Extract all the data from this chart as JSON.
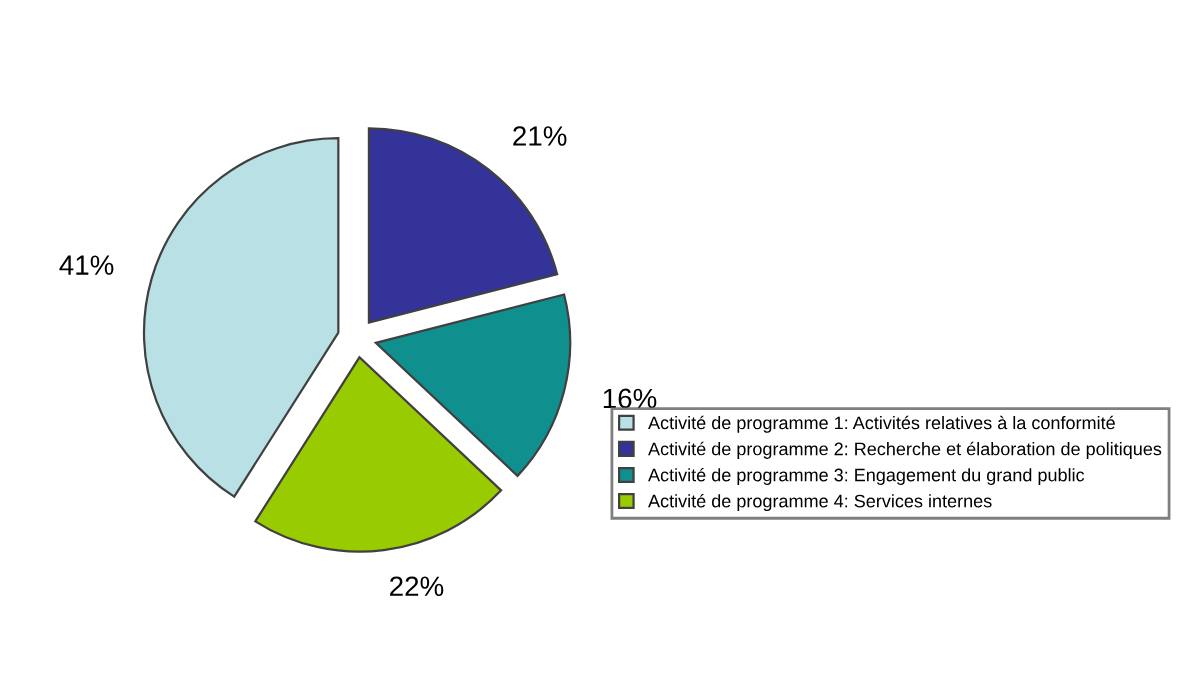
{
  "chart_data": {
    "type": "pie",
    "categories": [
      "Activité de programme 1: Activités relatives à la conformité",
      "Activité de programme 2: Recherche et élaboration de politiques",
      "Activité de programme 3: Engagement du grand public",
      "Activité de programme 4: Services internes"
    ],
    "values": [
      41,
      21,
      16,
      22
    ],
    "colors": [
      "#b9e0e4",
      "#333399",
      "#108f8f",
      "#99cc00"
    ],
    "value_labels": [
      "41%",
      "21%",
      "16%",
      "22%"
    ],
    "legend": "bottom right"
  }
}
